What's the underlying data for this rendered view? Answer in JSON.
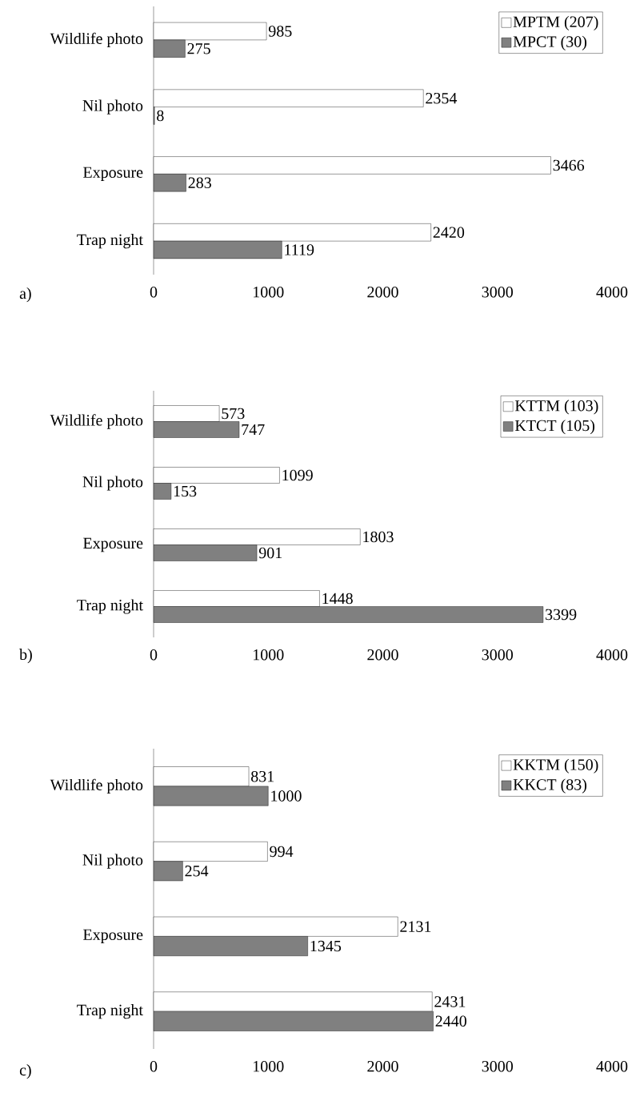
{
  "chart_data": [
    {
      "type": "bar",
      "orientation": "horizontal",
      "categories": [
        "Wildlife photo",
        "Nil photo",
        "Exposure",
        "Trap night"
      ],
      "series": [
        {
          "name": "MPTM (207)",
          "color": "#ffffff",
          "values": [
            985,
            2354,
            3466,
            2420
          ]
        },
        {
          "name": "MPCT (30)",
          "color": "#808080",
          "values": [
            275,
            8,
            283,
            1119
          ]
        }
      ],
      "xlim": [
        0,
        4000
      ],
      "xticks": [
        0,
        1000,
        2000,
        3000,
        4000
      ],
      "data_labels": true,
      "legend": "top right",
      "annotations": [
        "a)"
      ]
    },
    {
      "type": "bar",
      "orientation": "horizontal",
      "categories": [
        "Wildlife photo",
        "Nil photo",
        "Exposure",
        "Trap night"
      ],
      "series": [
        {
          "name": "KTTM (103)",
          "color": "#ffffff",
          "values": [
            573,
            1099,
            1803,
            1448
          ]
        },
        {
          "name": "KTCT (105)",
          "color": "#808080",
          "values": [
            747,
            153,
            901,
            3399
          ]
        }
      ],
      "xlim": [
        0,
        4000
      ],
      "xticks": [
        0,
        1000,
        2000,
        3000,
        4000
      ],
      "data_labels": true,
      "legend": "top right",
      "annotations": [
        "b)"
      ]
    },
    {
      "type": "bar",
      "orientation": "horizontal",
      "categories": [
        "Wildlife photo",
        "Nil photo",
        "Exposure",
        "Trap night"
      ],
      "series": [
        {
          "name": "KKTM (150)",
          "color": "#ffffff",
          "values": [
            831,
            994,
            2131,
            2431
          ]
        },
        {
          "name": "KKCT (83)",
          "color": "#808080",
          "values": [
            1000,
            254,
            1345,
            2440
          ]
        }
      ],
      "xlim": [
        0,
        4000
      ],
      "xticks": [
        0,
        1000,
        2000,
        3000,
        4000
      ],
      "data_labels": true,
      "legend": "top right",
      "annotations": [
        "c)"
      ]
    }
  ]
}
